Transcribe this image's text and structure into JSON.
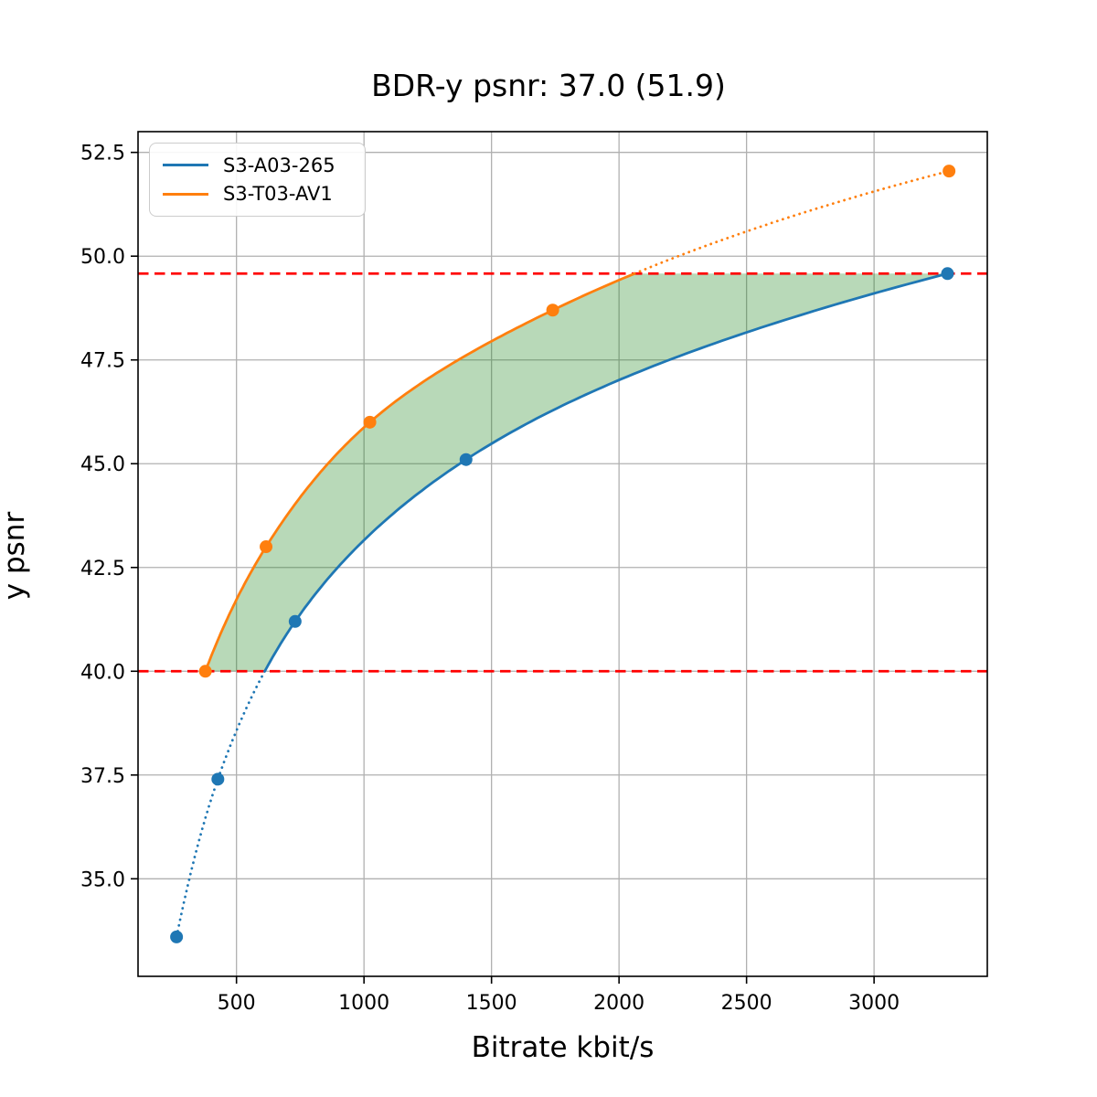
{
  "chart_data": {
    "type": "line",
    "title": "BDR-y psnr: 37.0 (51.9)",
    "xlabel": "Bitrate kbit/s",
    "ylabel": "y psnr",
    "xlim": [
      114,
      3444
    ],
    "ylim": [
      32.65,
      53.0
    ],
    "xticks": [
      500,
      1000,
      1500,
      2000,
      2500,
      3000
    ],
    "yticks": [
      35.0,
      37.5,
      40.0,
      42.5,
      45.0,
      47.5,
      50.0,
      52.5
    ],
    "grid": true,
    "grid_color": "#b0b0b0",
    "legend_position": "upper left",
    "series": [
      {
        "name": "S3-A03-265",
        "color": "#1f77b4",
        "x": [
          265,
          427,
          730,
          1400,
          3288
        ],
        "y": [
          33.6,
          37.4,
          41.2,
          45.1,
          49.58
        ],
        "style_inside_range": "solid",
        "style_outside_range": "dotted",
        "marker": "circle"
      },
      {
        "name": "S3-T03-AV1",
        "color": "#ff7f0e",
        "x": [
          378,
          616,
          1023,
          1740,
          3294
        ],
        "y": [
          40.0,
          43.0,
          46.0,
          48.7,
          52.05
        ],
        "style_inside_range": "solid",
        "style_outside_range": "dotted",
        "marker": "circle"
      }
    ],
    "hlines": [
      {
        "y": 40.0,
        "color": "#ff0000",
        "style": "dashed"
      },
      {
        "y": 49.58,
        "color": "#ff0000",
        "style": "dashed"
      }
    ],
    "integration_range": [
      40.0,
      49.58
    ],
    "shaded_region": {
      "color": "rgba(20,130,20,0.3)",
      "between": "curves",
      "y_range": [
        40.0,
        49.58
      ]
    }
  }
}
